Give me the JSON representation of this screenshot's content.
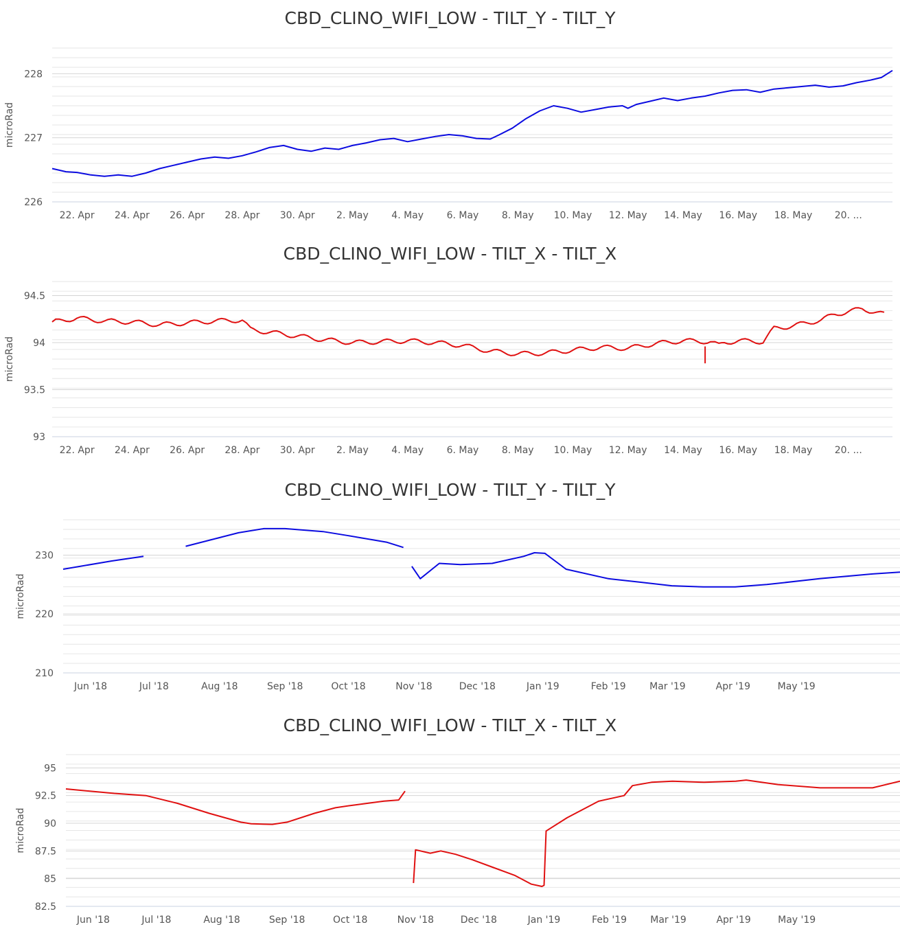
{
  "chart_data": [
    {
      "type": "line",
      "title": "CBD_CLINO_WIFI_LOW - TILT_Y - TILT_Y",
      "ylabel": "microRad",
      "ylim": [
        226,
        228.4
      ],
      "yticks": [
        "226",
        "227",
        "228"
      ],
      "yticks_values": [
        226,
        227,
        228
      ],
      "xticks": [
        "22. Apr",
        "24. Apr",
        "26. Apr",
        "28. Apr",
        "30. Apr",
        "2. May",
        "4. May",
        "6. May",
        "8. May",
        "10. May",
        "12. May",
        "14. May",
        "16. May",
        "18. May",
        "20. ..."
      ],
      "xlim": [
        20.1,
        50.6
      ],
      "xticks_values": [
        21,
        23,
        25,
        27,
        29,
        31,
        33,
        35,
        37,
        39,
        41,
        43,
        45,
        47,
        49
      ],
      "x_unit": "day of year 2019 (Apr/May)",
      "grid": true,
      "series": [
        {
          "color": "#0b0be0",
          "x": [
            20.1,
            20.6,
            21.0,
            21.5,
            22.0,
            22.5,
            23.0,
            23.5,
            24.0,
            24.5,
            25.0,
            25.5,
            26.0,
            26.5,
            27.0,
            27.5,
            28.0,
            28.5,
            29.0,
            29.5,
            30.0,
            30.5,
            31.0,
            31.5,
            32.0,
            32.5,
            33.0,
            33.5,
            34.0,
            34.5,
            35.0,
            35.5,
            36.0,
            36.3,
            36.8,
            37.3,
            37.8,
            38.3,
            38.8,
            39.3,
            39.8,
            40.3,
            40.8,
            41.0,
            41.3,
            41.8,
            42.3,
            42.8,
            43.3,
            43.8,
            44.3,
            44.8,
            45.3,
            45.8,
            46.3,
            46.8,
            47.3,
            47.8,
            48.3,
            48.8,
            49.3,
            49.8,
            50.2,
            50.6
          ],
          "values": [
            226.52,
            226.47,
            226.46,
            226.42,
            226.4,
            226.42,
            226.4,
            226.45,
            226.52,
            226.57,
            226.62,
            226.67,
            226.7,
            226.68,
            226.72,
            226.78,
            226.85,
            226.88,
            226.82,
            226.79,
            226.84,
            226.82,
            226.88,
            226.92,
            226.97,
            226.99,
            226.94,
            226.98,
            227.02,
            227.05,
            227.03,
            226.99,
            226.98,
            227.04,
            227.15,
            227.3,
            227.42,
            227.5,
            227.46,
            227.4,
            227.44,
            227.48,
            227.5,
            227.46,
            227.52,
            227.57,
            227.62,
            227.58,
            227.62,
            227.65,
            227.7,
            227.74,
            227.75,
            227.71,
            227.76,
            227.78,
            227.8,
            227.82,
            227.79,
            227.81,
            227.86,
            227.9,
            227.94,
            228.05
          ]
        }
      ]
    },
    {
      "type": "line",
      "title": "CBD_CLINO_WIFI_LOW - TILT_X - TILT_X",
      "ylabel": "microRad",
      "ylim": [
        93,
        94.65
      ],
      "yticks": [
        "93",
        "93.5",
        "94",
        "94.5"
      ],
      "yticks_values": [
        93,
        93.5,
        94,
        94.5
      ],
      "xticks": [
        "22. Apr",
        "24. Apr",
        "26. Apr",
        "28. Apr",
        "30. Apr",
        "2. May",
        "4. May",
        "6. May",
        "8. May",
        "10. May",
        "12. May",
        "14. May",
        "16. May",
        "18. May",
        "20. ..."
      ],
      "xlim": [
        20.1,
        50.6
      ],
      "xticks_values": [
        21,
        23,
        25,
        27,
        29,
        31,
        33,
        35,
        37,
        39,
        41,
        43,
        45,
        47,
        49
      ],
      "x_unit": "day of year 2019 (Apr/May)",
      "grid": true,
      "series": [
        {
          "color": "#e01010",
          "x": [
            20.1,
            21.0,
            22.0,
            23.0,
            24.0,
            25.0,
            26.0,
            27.0,
            27.3,
            28.0,
            29.0,
            30.0,
            31.0,
            32.0,
            33.0,
            34.0,
            35.0,
            36.0,
            37.0,
            38.0,
            39.0,
            40.0,
            41.0,
            42.0,
            43.0,
            44.0,
            44.3,
            44.5,
            45.0,
            45.9,
            46.3,
            47.0,
            48.0,
            48.5,
            49.5,
            50.3
          ],
          "values": [
            94.22,
            94.26,
            94.23,
            94.22,
            94.19,
            94.21,
            94.23,
            94.24,
            94.14,
            94.11,
            94.07,
            94.03,
            94.0,
            94.01,
            94.02,
            94.0,
            93.97,
            93.91,
            93.88,
            93.89,
            93.92,
            93.95,
            93.94,
            93.99,
            94.02,
            94.01,
            93.97,
            94.0,
            94.02,
            94.01,
            94.15,
            94.18,
            94.24,
            94.3,
            94.36,
            94.3
          ],
          "annotations": [
            {
              "x": 43.8,
              "y": 93.78,
              "label": ""
            }
          ]
        }
      ],
      "oscillation": {
        "amplitude": 0.025,
        "period_days": 1
      }
    },
    {
      "type": "line",
      "title": "CBD_CLINO_WIFI_LOW - TILT_Y - TILT_Y",
      "ylabel": "microRad",
      "ylim": [
        210,
        236
      ],
      "yticks": [
        "210",
        "220",
        "230"
      ],
      "yticks_values": [
        210,
        220,
        230
      ],
      "xticks": [
        "Jun '18",
        "Jul '18",
        "Aug '18",
        "Sep '18",
        "Oct '18",
        "Nov '18",
        "Dec '18",
        "Jan '19",
        "Feb '19",
        "Mar '19",
        "Apr '19",
        "May '19"
      ],
      "xlim": [
        -13,
        383
      ],
      "xticks_values": [
        0,
        30,
        61,
        92,
        122,
        153,
        183,
        214,
        245,
        273,
        304,
        334
      ],
      "x_unit": "days since 1 Jun 2018",
      "grid": true,
      "series": [
        {
          "color": "#0b0be0",
          "x": [
            -13,
            10,
            25,
            45,
            70,
            82,
            92,
            110,
            122,
            140,
            148,
            152,
            156,
            165,
            175,
            190,
            205,
            210,
            215,
            225,
            245,
            260,
            275,
            290,
            305,
            320,
            345,
            370,
            383
          ],
          "values": [
            227.6,
            229.0,
            229.8,
            231.5,
            233.8,
            234.5,
            234.5,
            234.0,
            233.3,
            232.2,
            231.3,
            228.1,
            226.0,
            228.6,
            228.4,
            228.6,
            229.8,
            230.4,
            230.3,
            227.6,
            226.0,
            225.4,
            224.8,
            224.6,
            224.6,
            225.0,
            226.0,
            226.8,
            227.1
          ],
          "gaps_after_x": [
            25,
            148
          ]
        }
      ]
    },
    {
      "type": "line",
      "title": "CBD_CLINO_WIFI_LOW - TILT_X - TILT_X",
      "ylabel": "microRad",
      "ylim": [
        82.5,
        96.2
      ],
      "yticks": [
        "82.5",
        "85",
        "87.5",
        "90",
        "92.5",
        "95"
      ],
      "yticks_values": [
        82.5,
        85,
        87.5,
        90,
        92.5,
        95
      ],
      "xticks": [
        "Jun '18",
        "Jul '18",
        "Aug '18",
        "Sep '18",
        "Oct '18",
        "Nov '18",
        "Dec '18",
        "Jan '19",
        "Feb '19",
        "Mar '19",
        "Apr '19",
        "May '19"
      ],
      "xlim": [
        -13,
        383
      ],
      "xticks_values": [
        0,
        30,
        61,
        92,
        122,
        153,
        183,
        214,
        245,
        273,
        304,
        334
      ],
      "x_unit": "days since 1 Jun 2018",
      "grid": true,
      "series": [
        {
          "color": "#e01010",
          "x": [
            -13,
            10,
            25,
            40,
            55,
            70,
            75,
            85,
            92,
            105,
            115,
            122,
            130,
            138,
            145,
            148
          ],
          "values": [
            93.1,
            92.7,
            92.5,
            91.8,
            90.9,
            90.1,
            89.95,
            89.9,
            90.1,
            90.9,
            91.4,
            91.6,
            91.8,
            92.0,
            92.1,
            92.9
          ]
        },
        {
          "color": "#e01010",
          "x": [
            152,
            153,
            160,
            165,
            172,
            180,
            190,
            200,
            208,
            213,
            214,
            215,
            225,
            240,
            252,
            256,
            265,
            275,
            290,
            305,
            310,
            325,
            345,
            370,
            383
          ],
          "values": [
            84.6,
            87.6,
            87.3,
            87.5,
            87.2,
            86.7,
            86.0,
            85.3,
            84.5,
            84.3,
            84.4,
            89.3,
            90.5,
            92.0,
            92.5,
            93.4,
            93.7,
            93.8,
            93.7,
            93.8,
            93.9,
            93.5,
            93.2,
            93.2,
            93.8
          ]
        }
      ]
    }
  ]
}
